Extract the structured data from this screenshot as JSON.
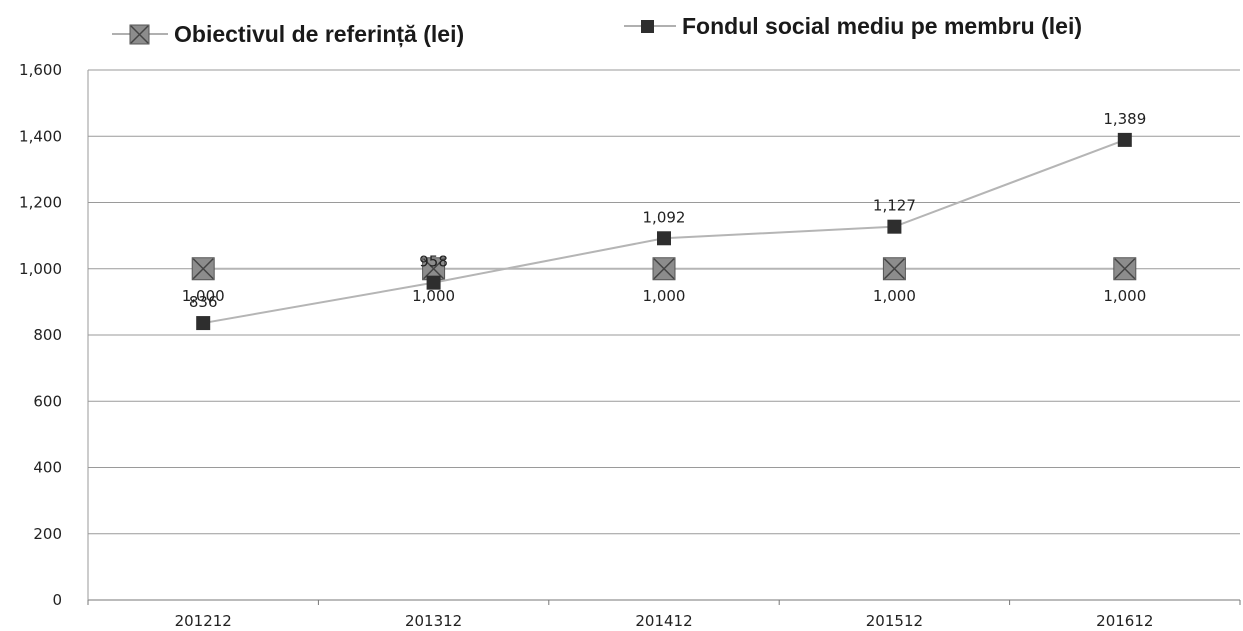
{
  "chart_data": {
    "type": "line",
    "categories": [
      "201212",
      "201312",
      "201412",
      "201512",
      "201612"
    ],
    "series": [
      {
        "name": "Obiectivul de referință (lei)",
        "values": [
          1000,
          1000,
          1000,
          1000,
          1000
        ],
        "labels": [
          "1,000",
          "1,000",
          "1,000",
          "1,000",
          "1,000"
        ],
        "color": "#8c8c8c",
        "marker": "square-x"
      },
      {
        "name": "Fondul social mediu pe membru (lei)",
        "values": [
          836,
          958,
          1092,
          1127,
          1389
        ],
        "labels": [
          "836",
          "958",
          "1,092",
          "1,127",
          "1,389"
        ],
        "color": "#2e2e2e",
        "marker": "square"
      }
    ],
    "ylim": [
      0,
      1600
    ],
    "yticks": [
      0,
      200,
      400,
      600,
      800,
      1000,
      1200,
      1400,
      1600
    ],
    "ytick_labels": [
      "0",
      "200",
      "400",
      "600",
      "800",
      "1,000",
      "1,200",
      "1,400",
      "1,600"
    ],
    "grid": true,
    "legend": "top",
    "title": "",
    "xlabel": "",
    "ylabel": ""
  }
}
